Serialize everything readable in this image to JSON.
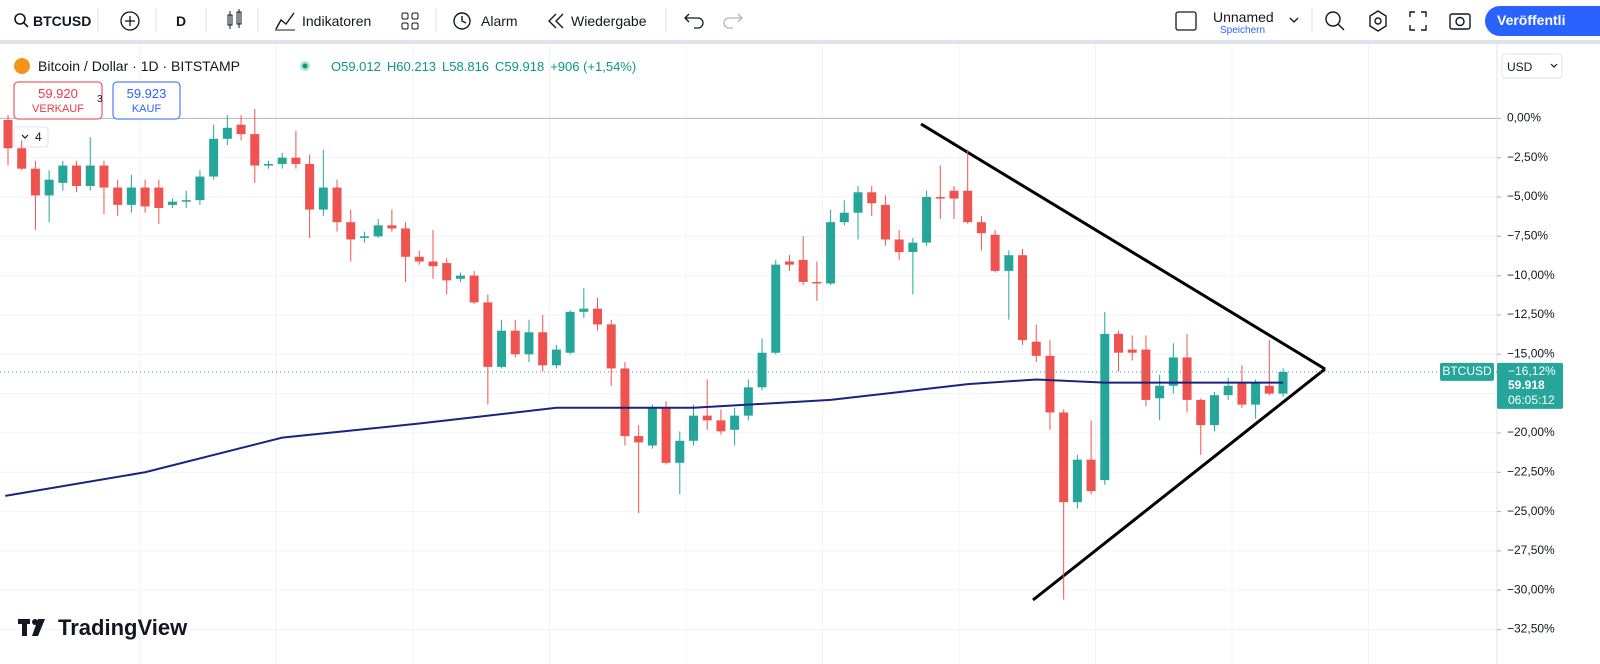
{
  "toolbar": {
    "symbol": "BTCUSD",
    "interval": "D",
    "indicators": "Indikatoren",
    "alarm": "Alarm",
    "replay": "Wiedergabe",
    "layout_name": "Unnamed",
    "save": "Speichern",
    "publish": "Veröffentli"
  },
  "legend": {
    "title": "Bitcoin / Dollar · 1D · BITSTAMP",
    "open": "O59.012",
    "high": "H60.213",
    "low": "L58.816",
    "close": "C59.918",
    "change": "+906 (+1,54%)",
    "sell_price": "59.920",
    "sell_label": "VERKAUF",
    "spread": "3",
    "buy_price": "59.923",
    "buy_label": "KAUF",
    "indicator_count": "4"
  },
  "currency": "USD",
  "logo": "TradingView",
  "chart_data": {
    "type": "candlestick",
    "up_color": "#26a69a",
    "down_color": "#ef5350",
    "ylim": [
      -33.8,
      4.6
    ],
    "yticks": [
      {
        "value": 0,
        "label": "0,00%"
      },
      {
        "value": -2.5,
        "label": "−2,50%"
      },
      {
        "value": -5,
        "label": "−5,00%"
      },
      {
        "value": -7.5,
        "label": "−7,50%"
      },
      {
        "value": -10,
        "label": "−10,00%"
      },
      {
        "value": -12.5,
        "label": "−12,50%"
      },
      {
        "value": -15,
        "label": "−15,00%"
      },
      {
        "value": -17.5,
        "label": "−17,50%"
      },
      {
        "value": -20,
        "label": "−20,00%"
      },
      {
        "value": -22.5,
        "label": "−22,50%"
      },
      {
        "value": -25,
        "label": "−25,00%"
      },
      {
        "value": -27.5,
        "label": "−27,50%"
      },
      {
        "value": -30,
        "label": "−30,00%"
      },
      {
        "value": -32.5,
        "label": "−32,50%"
      }
    ],
    "ohlc": [
      [
        -0.1,
        0.2,
        -3.0,
        -1.9
      ],
      [
        -1.9,
        -1.4,
        -3.3,
        -3.2
      ],
      [
        -3.2,
        -2.7,
        -7.1,
        -4.9
      ],
      [
        -4.9,
        -3.3,
        -6.6,
        -3.9
      ],
      [
        -4.1,
        -2.7,
        -4.6,
        -3.0
      ],
      [
        -3.0,
        -2.7,
        -4.7,
        -4.3
      ],
      [
        -4.3,
        -1.2,
        -4.6,
        -3.0
      ],
      [
        -3.0,
        -2.7,
        -6.1,
        -4.4
      ],
      [
        -4.4,
        -3.9,
        -6.2,
        -5.5
      ],
      [
        -5.5,
        -3.6,
        -6.0,
        -4.4
      ],
      [
        -4.4,
        -3.9,
        -6.0,
        -5.6
      ],
      [
        -4.4,
        -3.9,
        -6.7,
        -5.7
      ],
      [
        -5.5,
        -5.1,
        -5.7,
        -5.3
      ],
      [
        -5.3,
        -4.6,
        -5.7,
        -5.2
      ],
      [
        -5.2,
        -3.3,
        -5.5,
        -3.7
      ],
      [
        -3.7,
        -0.4,
        -3.9,
        -1.3
      ],
      [
        -1.3,
        0.2,
        -1.7,
        -0.6
      ],
      [
        -0.4,
        0.2,
        -1.4,
        -1.0
      ],
      [
        -1.0,
        0.6,
        -4.1,
        -3.0
      ],
      [
        -3.0,
        -2.7,
        -3.2,
        -2.9
      ],
      [
        -2.9,
        -2.2,
        -3.2,
        -2.5
      ],
      [
        -2.5,
        -0.8,
        -3.2,
        -2.9
      ],
      [
        -2.9,
        -2.3,
        -7.6,
        -5.8
      ],
      [
        -5.8,
        -2.0,
        -6.2,
        -4.4
      ],
      [
        -4.4,
        -3.9,
        -7.2,
        -6.6
      ],
      [
        -6.6,
        -5.8,
        -9.1,
        -7.7
      ],
      [
        -7.6,
        -7.2,
        -7.9,
        -7.5
      ],
      [
        -7.5,
        -6.4,
        -7.6,
        -6.8
      ],
      [
        -6.8,
        -5.8,
        -7.2,
        -7.0
      ],
      [
        -7.0,
        -6.6,
        -10.4,
        -8.8
      ],
      [
        -8.8,
        -8.4,
        -9.3,
        -9.1
      ],
      [
        -9.1,
        -7.1,
        -10.2,
        -9.4
      ],
      [
        -9.2,
        -8.9,
        -11.2,
        -10.3
      ],
      [
        -10.2,
        -9.8,
        -10.4,
        -10.0
      ],
      [
        -10.0,
        -9.7,
        -11.8,
        -11.7
      ],
      [
        -11.7,
        -11.2,
        -18.2,
        -15.8
      ],
      [
        -15.8,
        -12.8,
        -15.9,
        -13.5
      ],
      [
        -13.5,
        -12.8,
        -15.2,
        -15.0
      ],
      [
        -15.0,
        -12.8,
        -15.5,
        -13.6
      ],
      [
        -13.6,
        -12.5,
        -16.1,
        -15.7
      ],
      [
        -15.7,
        -14.4,
        -15.9,
        -14.7
      ],
      [
        -14.9,
        -12.2,
        -15.0,
        -12.3
      ],
      [
        -12.3,
        -10.8,
        -12.7,
        -12.1
      ],
      [
        -12.1,
        -11.4,
        -13.5,
        -13.1
      ],
      [
        -13.1,
        -12.8,
        -17.0,
        -15.9
      ],
      [
        -15.9,
        -15.5,
        -20.8,
        -20.2
      ],
      [
        -20.2,
        -19.5,
        -25.1,
        -20.6
      ],
      [
        -20.8,
        -18.2,
        -21.0,
        -18.4
      ],
      [
        -18.4,
        -18.0,
        -22.0,
        -21.9
      ],
      [
        -21.9,
        -19.9,
        -23.9,
        -20.5
      ],
      [
        -20.5,
        -18.2,
        -20.8,
        -18.9
      ],
      [
        -18.9,
        -16.6,
        -19.8,
        -19.2
      ],
      [
        -19.2,
        -18.5,
        -20.1,
        -19.9
      ],
      [
        -19.8,
        -18.4,
        -20.8,
        -18.9
      ],
      [
        -18.9,
        -16.6,
        -19.2,
        -17.1
      ],
      [
        -17.1,
        -14.0,
        -17.3,
        -14.9
      ],
      [
        -14.9,
        -9.0,
        -15.0,
        -9.3
      ],
      [
        -9.1,
        -8.7,
        -9.7,
        -9.3
      ],
      [
        -9.0,
        -7.5,
        -10.6,
        -10.4
      ],
      [
        -10.4,
        -9.1,
        -11.6,
        -10.5
      ],
      [
        -10.5,
        -5.8,
        -10.6,
        -6.6
      ],
      [
        -6.6,
        -5.2,
        -6.8,
        -6.0
      ],
      [
        -6.0,
        -4.3,
        -7.7,
        -4.7
      ],
      [
        -4.7,
        -4.3,
        -6.2,
        -5.4
      ],
      [
        -5.5,
        -4.9,
        -8.1,
        -7.7
      ],
      [
        -7.7,
        -7.1,
        -9.0,
        -8.5
      ],
      [
        -8.5,
        -7.6,
        -11.2,
        -7.9
      ],
      [
        -7.9,
        -4.6,
        -8.1,
        -5.0
      ],
      [
        -5.0,
        -3.0,
        -6.4,
        -5.1
      ],
      [
        -4.6,
        -4.3,
        -6.4,
        -5.1
      ],
      [
        -4.6,
        -2.0,
        -6.7,
        -6.6
      ],
      [
        -6.6,
        -6.2,
        -8.4,
        -7.3
      ],
      [
        -7.4,
        -7.1,
        -9.8,
        -9.7
      ],
      [
        -9.7,
        -8.4,
        -12.8,
        -8.7
      ],
      [
        -8.7,
        -8.3,
        -14.4,
        -14.1
      ],
      [
        -14.2,
        -13.1,
        -15.5,
        -15.1
      ],
      [
        -15.1,
        -14.1,
        -19.8,
        -18.7
      ],
      [
        -18.7,
        -18.5,
        -30.6,
        -24.4
      ],
      [
        -24.4,
        -21.4,
        -24.8,
        -21.7
      ],
      [
        -21.7,
        -19.2,
        -23.9,
        -23.7
      ],
      [
        -23.0,
        -12.3,
        -23.3,
        -13.7
      ],
      [
        -13.7,
        -13.5,
        -16.1,
        -14.9
      ],
      [
        -14.7,
        -13.8,
        -15.4,
        -14.9
      ],
      [
        -14.7,
        -13.8,
        -18.3,
        -17.9
      ],
      [
        -17.8,
        -16.3,
        -19.2,
        -17.0
      ],
      [
        -17.0,
        -14.3,
        -17.5,
        -15.2
      ],
      [
        -15.2,
        -13.7,
        -18.7,
        -17.9
      ],
      [
        -17.9,
        -17.8,
        -21.4,
        -19.5
      ],
      [
        -19.5,
        -17.4,
        -19.9,
        -17.6
      ],
      [
        -17.6,
        -16.5,
        -17.9,
        -17.0
      ],
      [
        -16.8,
        -15.7,
        -18.4,
        -18.2
      ],
      [
        -18.2,
        -16.6,
        -19.1,
        -16.8
      ],
      [
        -17.0,
        -14.1,
        -17.6,
        -17.5
      ],
      [
        -17.5,
        -15.9,
        -17.7,
        -16.12
      ]
    ],
    "series": [
      {
        "color": "#1a237e",
        "x": [
          0,
          10,
          20,
          30,
          40,
          50,
          60,
          70,
          75,
          80,
          85,
          93
        ],
        "values": [
          -24.0,
          -22.5,
          -20.3,
          -19.4,
          -18.4,
          -18.4,
          -17.9,
          -16.9,
          -16.6,
          -16.8,
          -16.8,
          -16.8
        ]
      }
    ],
    "last_price": {
      "symbol": "BTCUSD",
      "change": "−16,12%",
      "price": "59.918",
      "countdown": "06:05:12"
    }
  }
}
